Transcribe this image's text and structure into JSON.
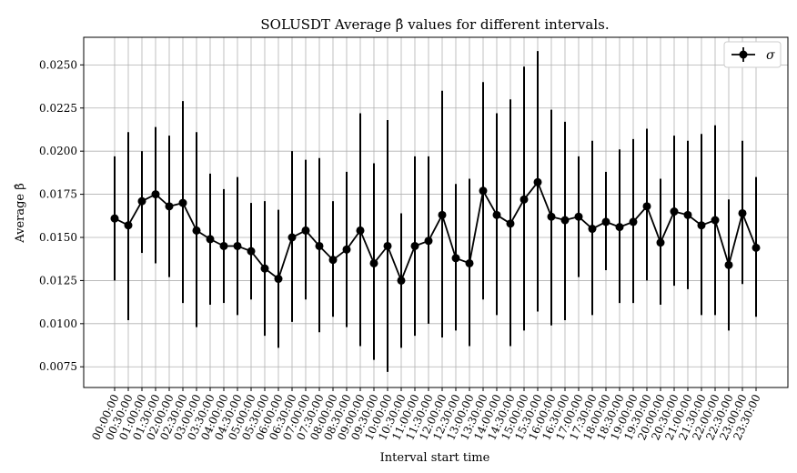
{
  "chart_data": {
    "type": "line",
    "title": "SOLUSDT Average β̂ values for different intervals.",
    "xlabel": "Interval start time",
    "ylabel": "Average β̂",
    "ylim": [
      0.0063,
      0.0266
    ],
    "yticks": [
      "0.0075",
      "0.0100",
      "0.0125",
      "0.0150",
      "0.0175",
      "0.0200",
      "0.0225",
      "0.0250"
    ],
    "grid": true,
    "legend_position": "top-right",
    "categories": [
      "00:00:00",
      "00:30:00",
      "01:00:00",
      "01:30:00",
      "02:00:00",
      "02:30:00",
      "03:00:00",
      "03:30:00",
      "04:00:00",
      "04:30:00",
      "05:00:00",
      "05:30:00",
      "06:00:00",
      "06:30:00",
      "07:00:00",
      "07:30:00",
      "08:00:00",
      "08:30:00",
      "09:00:00",
      "09:30:00",
      "10:00:00",
      "10:30:00",
      "11:00:00",
      "11:30:00",
      "12:00:00",
      "12:30:00",
      "13:00:00",
      "13:30:00",
      "14:00:00",
      "14:30:00",
      "15:00:00",
      "15:30:00",
      "16:00:00",
      "16:30:00",
      "17:00:00",
      "17:30:00",
      "18:00:00",
      "18:30:00",
      "19:00:00",
      "19:30:00",
      "20:00:00",
      "20:30:00",
      "21:00:00",
      "21:30:00",
      "22:00:00",
      "22:30:00",
      "23:00:00",
      "23:30:00"
    ],
    "series": [
      {
        "name": "σ",
        "color": "#000000",
        "marker": "circle",
        "values": [
          0.0161,
          0.0157,
          0.0171,
          0.0175,
          0.0168,
          0.017,
          0.0154,
          0.0149,
          0.0145,
          0.0145,
          0.0142,
          0.0132,
          0.0126,
          0.015,
          0.0154,
          0.0145,
          0.0137,
          0.0143,
          0.0154,
          0.0135,
          0.0145,
          0.0125,
          0.0145,
          0.0148,
          0.0163,
          0.0138,
          0.0135,
          0.0177,
          0.0163,
          0.0158,
          0.0172,
          0.0182,
          0.0162,
          0.016,
          0.0162,
          0.0155,
          0.0159,
          0.0156,
          0.0159,
          0.0168,
          0.0147,
          0.0165,
          0.0163,
          0.0157,
          0.016,
          0.0134,
          0.0164,
          0.0144
        ],
        "error_low": [
          0.0125,
          0.0102,
          0.0141,
          0.0135,
          0.0127,
          0.0112,
          0.0098,
          0.0111,
          0.0112,
          0.0105,
          0.0114,
          0.0093,
          0.0086,
          0.0101,
          0.0114,
          0.0095,
          0.0104,
          0.0098,
          0.0087,
          0.0079,
          0.0072,
          0.0086,
          0.0093,
          0.01,
          0.0092,
          0.0096,
          0.0087,
          0.0114,
          0.0105,
          0.0087,
          0.0096,
          0.0107,
          0.0099,
          0.0102,
          0.0127,
          0.0105,
          0.0131,
          0.0112,
          0.0112,
          0.0125,
          0.0111,
          0.0122,
          0.012,
          0.0105,
          0.0105,
          0.0096,
          0.0123,
          0.0104
        ],
        "error_high": [
          0.0197,
          0.0211,
          0.02,
          0.0214,
          0.0209,
          0.0229,
          0.0211,
          0.0187,
          0.0178,
          0.0185,
          0.017,
          0.0171,
          0.0166,
          0.02,
          0.0195,
          0.0196,
          0.0171,
          0.0188,
          0.0222,
          0.0193,
          0.0218,
          0.0164,
          0.0197,
          0.0197,
          0.0235,
          0.0181,
          0.0184,
          0.024,
          0.0222,
          0.023,
          0.0249,
          0.0258,
          0.0224,
          0.0217,
          0.0197,
          0.0206,
          0.0188,
          0.0201,
          0.0207,
          0.0213,
          0.0184,
          0.0209,
          0.0206,
          0.021,
          0.0215,
          0.0172,
          0.0206,
          0.0185
        ]
      }
    ]
  }
}
